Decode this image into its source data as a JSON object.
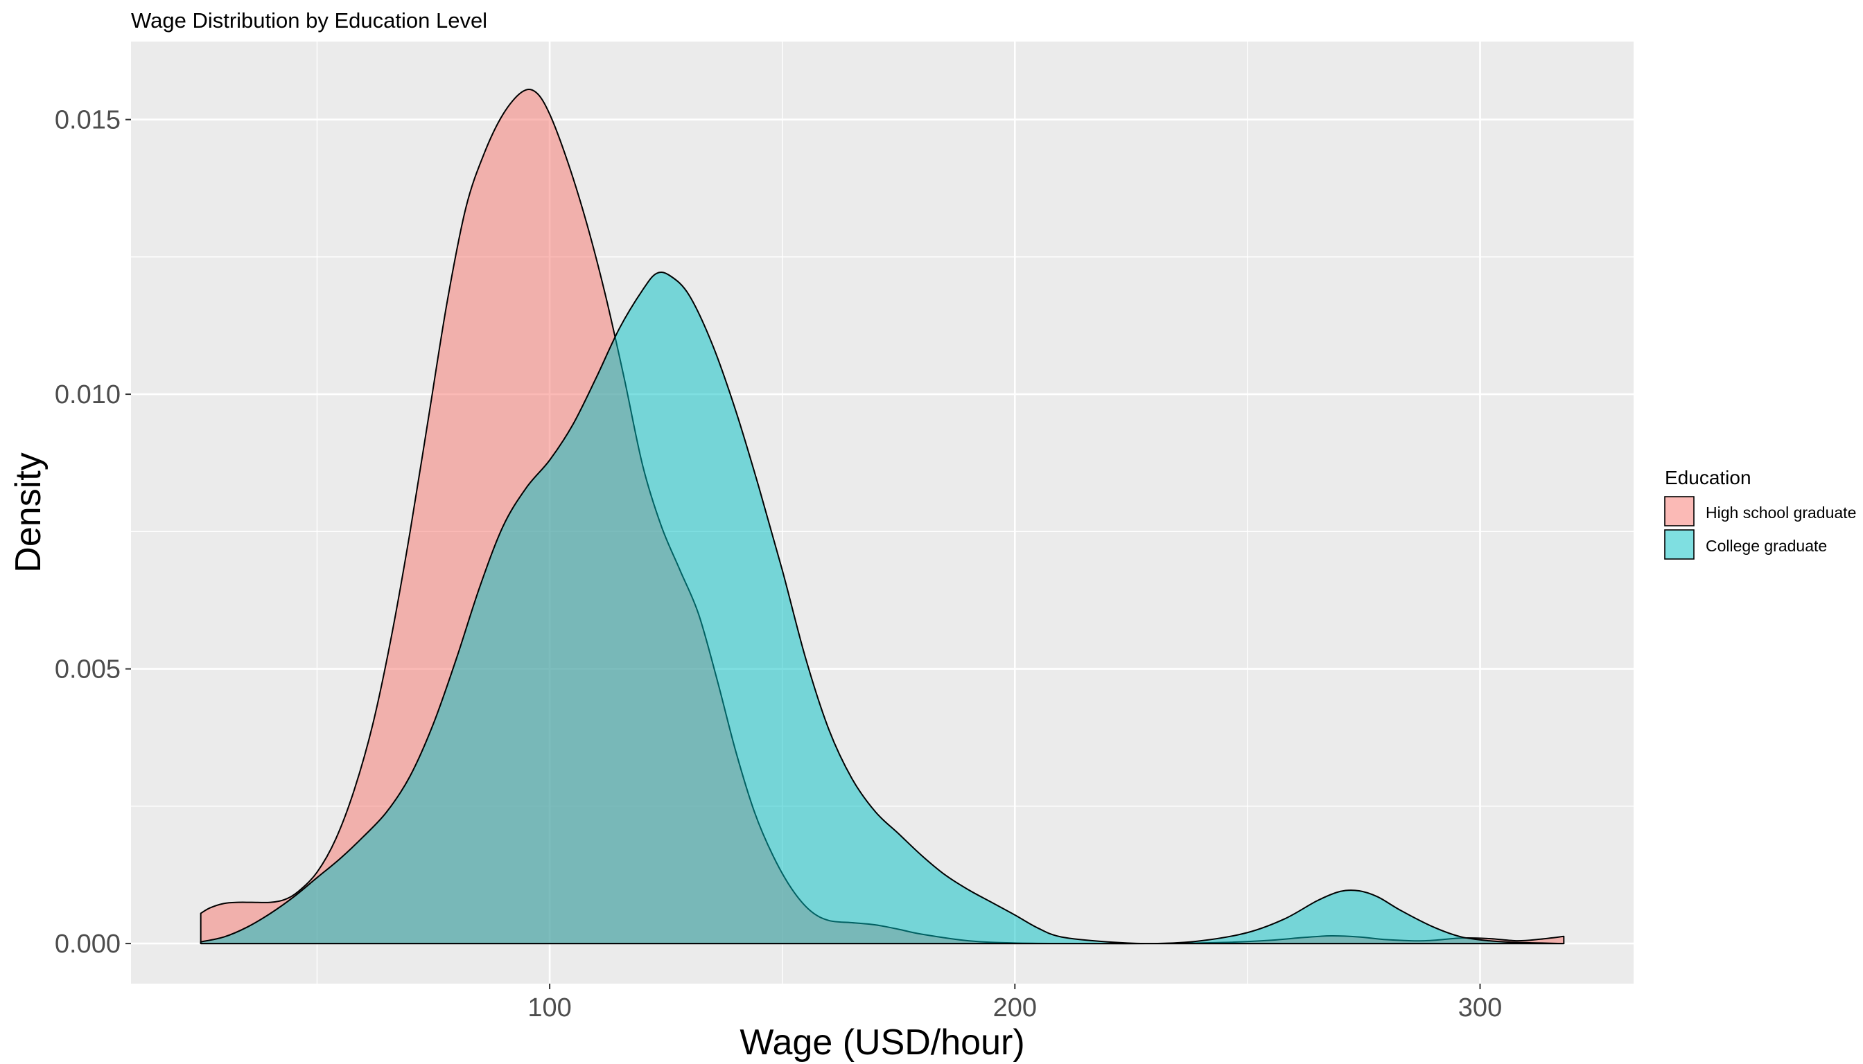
{
  "chart_data": {
    "type": "area",
    "subtype": "density",
    "title": "Wage Distribution by Education Level",
    "xlabel": "Wage (USD/hour)",
    "ylabel": "Density",
    "xlim": [
      10,
      333
    ],
    "ylim": [
      -0.00073,
      0.01642
    ],
    "x_ticks": [
      100,
      200,
      300
    ],
    "x_tick_labels": [
      "100",
      "200",
      "300"
    ],
    "y_ticks": [
      0.0,
      0.005,
      0.01,
      0.015
    ],
    "y_tick_labels": [
      "0.000",
      "0.005",
      "0.010",
      "0.015"
    ],
    "grid": true,
    "panel_background": "#ebebeb",
    "grid_color": "#ffffff",
    "outline_color": "#000000",
    "fill_alpha": 0.5,
    "legend": {
      "title": "Education",
      "position": "right"
    },
    "series": [
      {
        "name": "High school graduate",
        "color": "#f8766d",
        "points": [
          [
            25,
            0.00055
          ],
          [
            27,
            0.00065
          ],
          [
            30,
            0.00073
          ],
          [
            33,
            0.00075
          ],
          [
            36,
            0.00075
          ],
          [
            40,
            0.00075
          ],
          [
            43,
            0.0008
          ],
          [
            46,
            0.00095
          ],
          [
            50,
            0.0013
          ],
          [
            54,
            0.0019
          ],
          [
            58,
            0.0028
          ],
          [
            62,
            0.004
          ],
          [
            66,
            0.0056
          ],
          [
            70,
            0.0075
          ],
          [
            74,
            0.0096
          ],
          [
            78,
            0.0117
          ],
          [
            82,
            0.0134
          ],
          [
            86,
            0.0144
          ],
          [
            90,
            0.0151
          ],
          [
            94,
            0.0155
          ],
          [
            97,
            0.0155
          ],
          [
            100,
            0.0151
          ],
          [
            104,
            0.0142
          ],
          [
            108,
            0.0131
          ],
          [
            112,
            0.0118
          ],
          [
            116,
            0.0103
          ],
          [
            120,
            0.0087
          ],
          [
            124,
            0.0076
          ],
          [
            128,
            0.0068
          ],
          [
            132,
            0.006
          ],
          [
            136,
            0.0048
          ],
          [
            140,
            0.0035
          ],
          [
            144,
            0.0024
          ],
          [
            148,
            0.0016
          ],
          [
            152,
            0.001
          ],
          [
            156,
            0.0006
          ],
          [
            160,
            0.00042
          ],
          [
            165,
            0.00038
          ],
          [
            170,
            0.00034
          ],
          [
            175,
            0.00026
          ],
          [
            180,
            0.00017
          ],
          [
            190,
            5e-05
          ],
          [
            200,
            1e-05
          ],
          [
            215,
            0.0
          ],
          [
            230,
            0.0
          ],
          [
            245,
            2e-05
          ],
          [
            255,
            6e-05
          ],
          [
            262,
            0.00011
          ],
          [
            268,
            0.00014
          ],
          [
            274,
            0.00012
          ],
          [
            280,
            7e-05
          ],
          [
            288,
            5e-05
          ],
          [
            296,
            0.0001
          ],
          [
            302,
            9e-05
          ],
          [
            308,
            5e-05
          ],
          [
            313,
            8e-05
          ],
          [
            318,
            0.00013
          ]
        ]
      },
      {
        "name": "College graduate",
        "color": "#00bfc4",
        "points": [
          [
            25,
            3e-05
          ],
          [
            30,
            0.00012
          ],
          [
            35,
            0.0003
          ],
          [
            40,
            0.00055
          ],
          [
            45,
            0.00085
          ],
          [
            50,
            0.0012
          ],
          [
            55,
            0.00155
          ],
          [
            60,
            0.00195
          ],
          [
            65,
            0.0024
          ],
          [
            70,
            0.00305
          ],
          [
            75,
            0.004
          ],
          [
            80,
            0.0052
          ],
          [
            85,
            0.0065
          ],
          [
            90,
            0.0076
          ],
          [
            95,
            0.0083
          ],
          [
            100,
            0.0088
          ],
          [
            105,
            0.00945
          ],
          [
            110,
            0.0103
          ],
          [
            115,
            0.0112
          ],
          [
            120,
            0.0119
          ],
          [
            123,
            0.0122
          ],
          [
            126,
            0.01215
          ],
          [
            130,
            0.0118
          ],
          [
            135,
            0.0109
          ],
          [
            140,
            0.0097
          ],
          [
            145,
            0.0083
          ],
          [
            150,
            0.0068
          ],
          [
            155,
            0.0052
          ],
          [
            160,
            0.0039
          ],
          [
            165,
            0.003
          ],
          [
            170,
            0.0024
          ],
          [
            175,
            0.002
          ],
          [
            180,
            0.0016
          ],
          [
            185,
            0.00125
          ],
          [
            190,
            0.00098
          ],
          [
            195,
            0.00075
          ],
          [
            200,
            0.00052
          ],
          [
            205,
            0.00028
          ],
          [
            210,
            0.00012
          ],
          [
            220,
            3e-05
          ],
          [
            230,
            0.0
          ],
          [
            240,
            5e-05
          ],
          [
            250,
            0.0002
          ],
          [
            258,
            0.00045
          ],
          [
            265,
            0.00078
          ],
          [
            270,
            0.00095
          ],
          [
            274,
            0.00096
          ],
          [
            278,
            0.00085
          ],
          [
            283,
            0.0006
          ],
          [
            290,
            0.0003
          ],
          [
            296,
            0.00012
          ],
          [
            302,
            5e-05
          ],
          [
            308,
            2e-05
          ],
          [
            318,
            0.0
          ]
        ]
      }
    ]
  }
}
